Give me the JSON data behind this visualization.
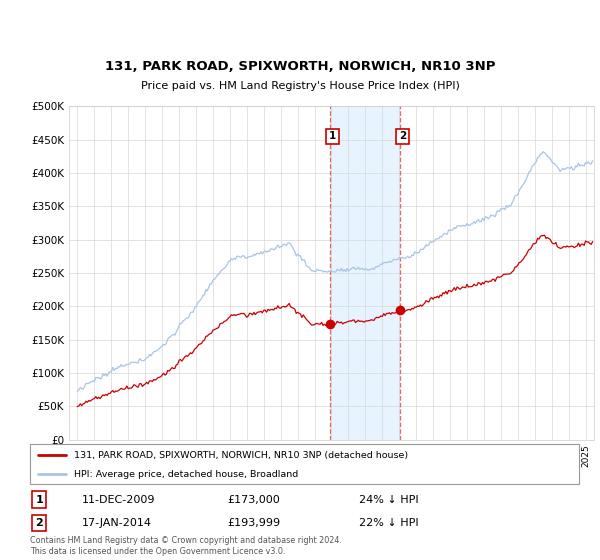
{
  "title": "131, PARK ROAD, SPIXWORTH, NORWICH, NR10 3NP",
  "subtitle": "Price paid vs. HM Land Registry's House Price Index (HPI)",
  "legend_line1": "131, PARK ROAD, SPIXWORTH, NORWICH, NR10 3NP (detached house)",
  "legend_line2": "HPI: Average price, detached house, Broadland",
  "transaction1_date": "11-DEC-2009",
  "transaction1_price": "£173,000",
  "transaction1_hpi": "24% ↓ HPI",
  "transaction2_date": "17-JAN-2014",
  "transaction2_price": "£193,999",
  "transaction2_hpi": "22% ↓ HPI",
  "footer": "Contains HM Land Registry data © Crown copyright and database right 2024.\nThis data is licensed under the Open Government Licence v3.0.",
  "hpi_color": "#aac4e4",
  "price_color": "#cc0000",
  "shade_color": "#ddeeff",
  "transaction1_x": 2009.92,
  "transaction2_x": 2014.04,
  "transaction1_price_val": 173000,
  "transaction2_price_val": 193999,
  "ylim_min": 0,
  "ylim_max": 500000,
  "xlim_min": 1994.5,
  "xlim_max": 2025.5
}
